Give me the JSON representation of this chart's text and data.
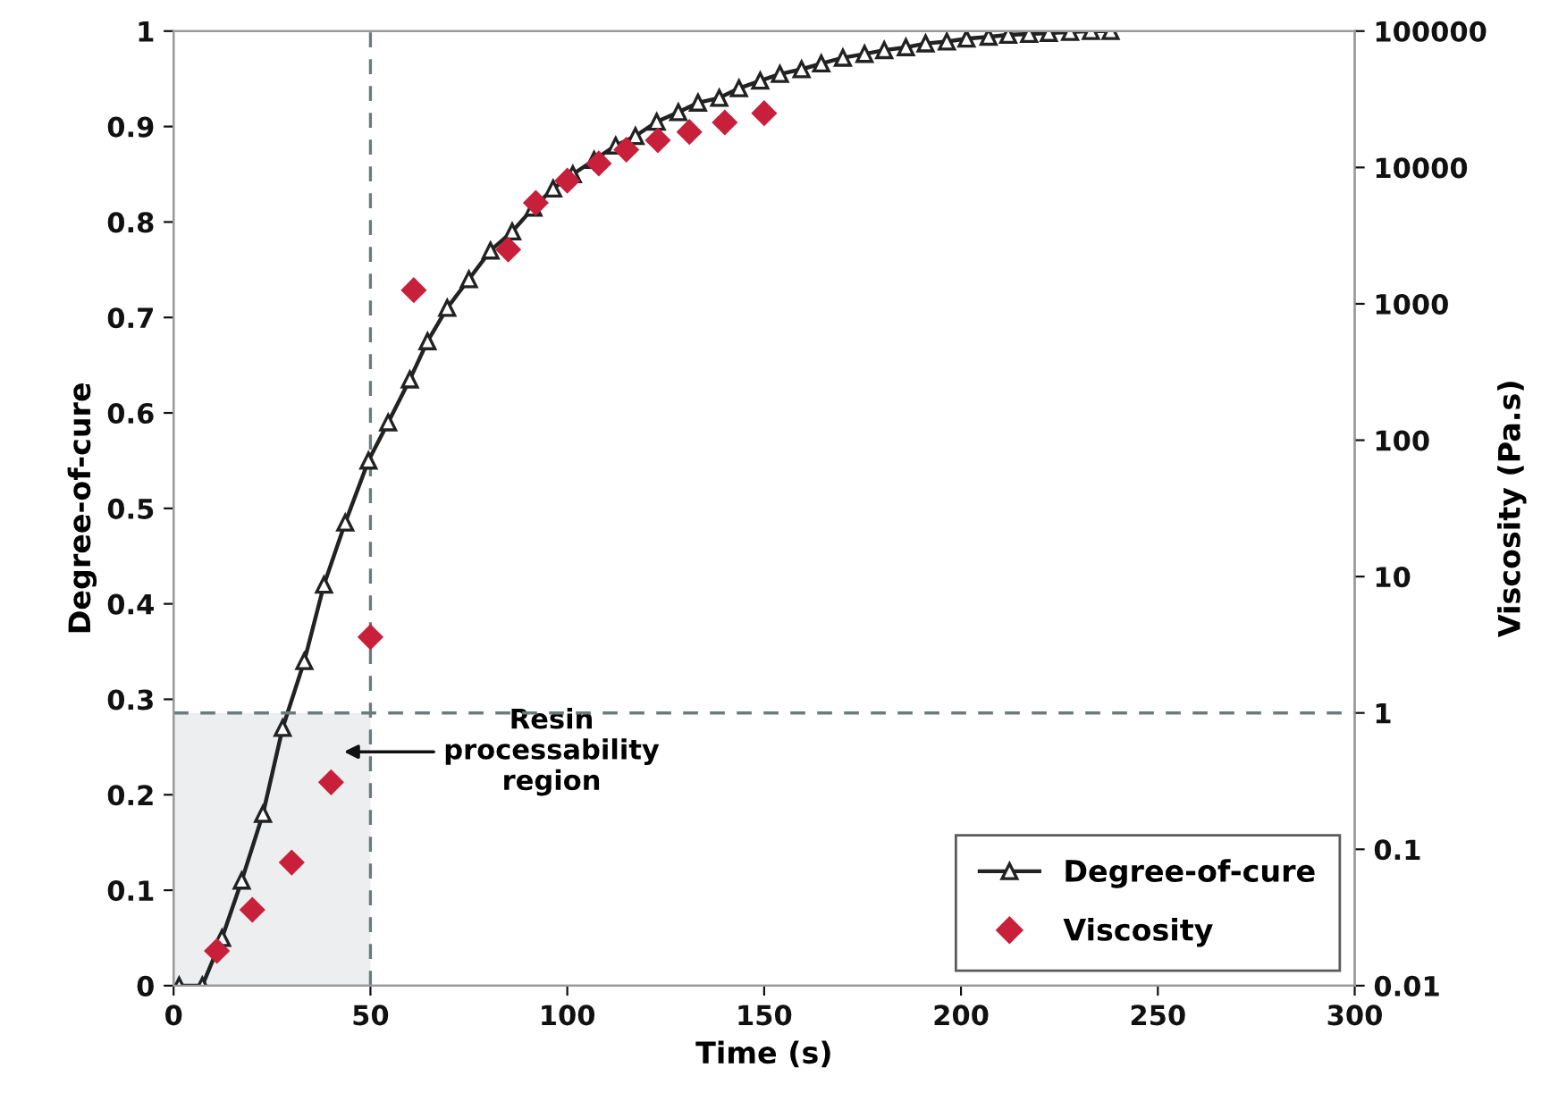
{
  "chart_data": {
    "type": "line",
    "xlabel": "Time (s)",
    "ylabel": "Degree-of-cure",
    "y2label": "Viscosity (Pa.s)",
    "xlim": [
      0,
      300
    ],
    "xticks": [
      0,
      50,
      100,
      150,
      200,
      250,
      300
    ],
    "ylim": [
      0,
      1
    ],
    "yticks": [
      0,
      0.1,
      0.2,
      0.3,
      0.4,
      0.5,
      0.6,
      0.7,
      0.8,
      0.9,
      1
    ],
    "y2lim": [
      0.01,
      100000
    ],
    "y2ticks": [
      0.01,
      0.1,
      1,
      10,
      100,
      1000,
      10000,
      100000
    ],
    "log": "y2",
    "grid": false,
    "legend": "bottom right",
    "series": [
      {
        "name": "Degree-of-cure",
        "marker": "triangle",
        "color": "#222222",
        "x": [
          1.4,
          7.3,
          12.3,
          17.3,
          22.7,
          27.7,
          33.2,
          38.2,
          43.6,
          49.5,
          54.5,
          60,
          64.5,
          69.5,
          75,
          80.5,
          86,
          91.4,
          96.4,
          101.4,
          106.8,
          112.3,
          117.3,
          122.7,
          128.2,
          133.2,
          138.6,
          143.6,
          149,
          154,
          159.5,
          164.5,
          170,
          175.5,
          180.5,
          186,
          191,
          196.4,
          201.4,
          207,
          212,
          217.3,
          222.3,
          227.7,
          233,
          238
        ],
        "values": [
          0,
          0,
          0.05,
          0.11,
          0.18,
          0.27,
          0.34,
          0.42,
          0.485,
          0.55,
          0.59,
          0.635,
          0.675,
          0.71,
          0.74,
          0.77,
          0.79,
          0.815,
          0.835,
          0.85,
          0.865,
          0.88,
          0.89,
          0.905,
          0.915,
          0.925,
          0.93,
          0.94,
          0.948,
          0.955,
          0.96,
          0.966,
          0.972,
          0.976,
          0.98,
          0.983,
          0.987,
          0.989,
          0.992,
          0.994,
          0.996,
          0.997,
          0.998,
          0.999,
          1.0,
          1.0
        ]
      },
      {
        "name": "Viscosity",
        "type": "scatter",
        "marker": "diamond",
        "axis": "y2",
        "color": "#c8203a",
        "x": [
          11,
          20,
          30,
          40,
          50,
          61,
          85,
          92,
          100,
          108,
          115,
          123,
          131,
          140,
          150
        ],
        "values": [
          0.018,
          0.036,
          0.08,
          0.31,
          3.6,
          1260,
          2500,
          5500,
          8000,
          10700,
          13500,
          15800,
          18200,
          21400,
          25000
        ]
      }
    ],
    "ref_lines": [
      {
        "axis": "x",
        "value": 50,
        "color": "#6b7b7b",
        "line_style": "dashed"
      },
      {
        "axis": "y2",
        "value": 1,
        "color": "#6b7b7b",
        "line_style": "dashed"
      }
    ],
    "bands": [
      {
        "axis": "x",
        "from": 0,
        "to": 50,
        "color": "#eceef0"
      }
    ],
    "annotations": [
      "Resin\nprocessability\nregion"
    ]
  }
}
